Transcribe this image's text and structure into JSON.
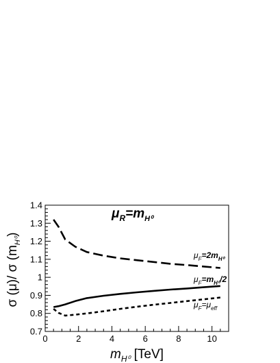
{
  "chart_data": {
    "type": "line",
    "title": "μ_R=m_H⁰",
    "title_parts": {
      "base": "μ",
      "sub": "R",
      "mid": "=m",
      "sub2": "H⁰"
    },
    "xlabel": "m_H⁰ [TeV]",
    "xlabel_parts": {
      "base": "m",
      "sub": "H⁰",
      "tail": " [TeV]"
    },
    "ylabel": "σ (μ)/ σ (m_H⁰)",
    "ylabel_parts": {
      "head": "σ (μ)/ σ (m",
      "sub": "H⁰",
      "tail": ")"
    },
    "xlim": [
      0,
      11
    ],
    "ylim": [
      0.7,
      1.4
    ],
    "xticks": [
      0,
      2,
      4,
      6,
      8,
      10
    ],
    "xtick_labels": [
      "0",
      "2",
      "4",
      "6",
      "8",
      "10"
    ],
    "yticks": [
      0.7,
      0.8,
      0.9,
      1.0,
      1.1,
      1.2,
      1.3,
      1.4
    ],
    "ytick_labels": [
      "0.7",
      "0.8",
      "0.9",
      "1",
      "1.1",
      "1.2",
      "1.3",
      "1.4"
    ],
    "grid": false,
    "legend": "none",
    "series": [
      {
        "label_parts": {
          "base": "μ",
          "sub": "F",
          "mid": "=2m",
          "sub2": "H⁰",
          "tail": ""
        },
        "dash": "long-dash",
        "x": [
          0.5,
          0.8,
          1.2,
          1.8,
          2.5,
          3.5,
          4.5,
          5.5,
          6.5,
          7.5,
          8.5,
          9.5,
          10.5
        ],
        "y": [
          1.32,
          1.28,
          1.21,
          1.17,
          1.14,
          1.12,
          1.105,
          1.095,
          1.085,
          1.075,
          1.068,
          1.06,
          1.052
        ]
      },
      {
        "label_parts": {
          "base": "μ",
          "sub": "F",
          "mid": "=m",
          "sub2": "H⁰",
          "tail": "/2"
        },
        "dash": "solid",
        "x": [
          0.5,
          0.8,
          1.2,
          1.8,
          2.5,
          3.5,
          4.5,
          5.5,
          6.5,
          7.5,
          8.5,
          9.5,
          10.5
        ],
        "y": [
          0.835,
          0.84,
          0.85,
          0.868,
          0.885,
          0.898,
          0.908,
          0.917,
          0.925,
          0.932,
          0.938,
          0.945,
          0.952
        ]
      },
      {
        "label_parts": {
          "base": "μ",
          "sub": "F",
          "mid": "=μ",
          "sub2": "eff",
          "tail": ""
        },
        "dash": "short-dash",
        "x": [
          0.5,
          0.8,
          1.2,
          1.8,
          2.5,
          3.5,
          4.5,
          5.5,
          6.5,
          7.5,
          8.5,
          9.5,
          10.5
        ],
        "y": [
          0.825,
          0.803,
          0.788,
          0.793,
          0.8,
          0.812,
          0.825,
          0.837,
          0.848,
          0.858,
          0.868,
          0.878,
          0.888
        ]
      }
    ]
  }
}
